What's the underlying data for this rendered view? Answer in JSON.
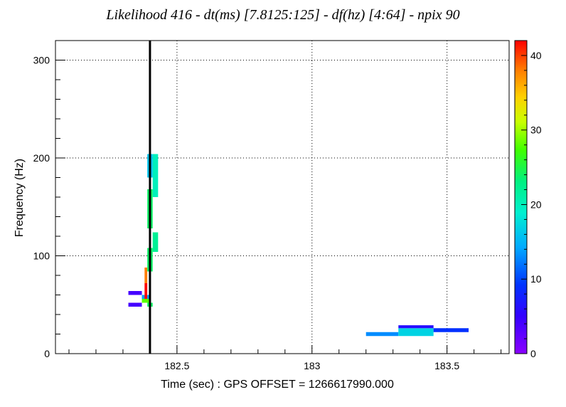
{
  "chart_data": {
    "type": "heatmap",
    "title": "Likelihood 416 - dt(ms) [7.8125:125] - df(hz) [4:64] - npix 90",
    "xlabel": "Time (sec) : GPS OFFSET = 1266617990.000",
    "ylabel": "Frequency (Hz)",
    "xlim": [
      182.05,
      183.73
    ],
    "ylim": [
      0,
      320
    ],
    "x_ticks": [
      182.5,
      183,
      183.5
    ],
    "x_tick_labels": [
      "182.5",
      "183",
      "183.5"
    ],
    "y_ticks": [
      0,
      100,
      200,
      300
    ],
    "y_tick_labels": [
      "0",
      "100",
      "200",
      "300"
    ],
    "grid": true,
    "colorbar": {
      "min": 0,
      "max": 42,
      "ticks": [
        0,
        10,
        20,
        30,
        40
      ],
      "tick_labels": [
        "0",
        "10",
        "20",
        "30",
        "40"
      ]
    },
    "marker_line_x": 182.4,
    "cells": [
      {
        "t0": 182.32,
        "t1": 182.37,
        "f0": 60,
        "f1": 64,
        "v": 4
      },
      {
        "t0": 182.32,
        "t1": 182.37,
        "f0": 48,
        "f1": 52,
        "v": 4
      },
      {
        "t0": 182.37,
        "t1": 182.4,
        "f0": 56,
        "f1": 60,
        "v": 14
      },
      {
        "t0": 182.37,
        "t1": 182.4,
        "f0": 52,
        "f1": 56,
        "v": 28
      },
      {
        "t0": 182.39,
        "t1": 182.41,
        "f0": 48,
        "f1": 52,
        "v": 24
      },
      {
        "t0": 182.38,
        "t1": 182.39,
        "f0": 56,
        "f1": 72,
        "v": 42
      },
      {
        "t0": 182.38,
        "t1": 182.39,
        "f0": 72,
        "f1": 88,
        "v": 38
      },
      {
        "t0": 182.39,
        "t1": 182.41,
        "f0": 84,
        "f1": 108,
        "v": 24
      },
      {
        "t0": 182.41,
        "t1": 182.43,
        "f0": 104,
        "f1": 124,
        "v": 22
      },
      {
        "t0": 182.39,
        "t1": 182.41,
        "f0": 128,
        "f1": 168,
        "v": 24
      },
      {
        "t0": 182.41,
        "t1": 182.43,
        "f0": 160,
        "f1": 204,
        "v": 20
      },
      {
        "t0": 182.39,
        "t1": 182.41,
        "f0": 180,
        "f1": 204,
        "v": 16
      },
      {
        "t0": 183.2,
        "t1": 183.32,
        "f0": 18,
        "f1": 22,
        "v": 13
      },
      {
        "t0": 183.32,
        "t1": 183.45,
        "f0": 18,
        "f1": 26,
        "v": 17
      },
      {
        "t0": 183.32,
        "t1": 183.45,
        "f0": 26,
        "f1": 29,
        "v": 6
      },
      {
        "t0": 183.45,
        "t1": 183.58,
        "f0": 22,
        "f1": 26,
        "v": 9
      }
    ]
  }
}
